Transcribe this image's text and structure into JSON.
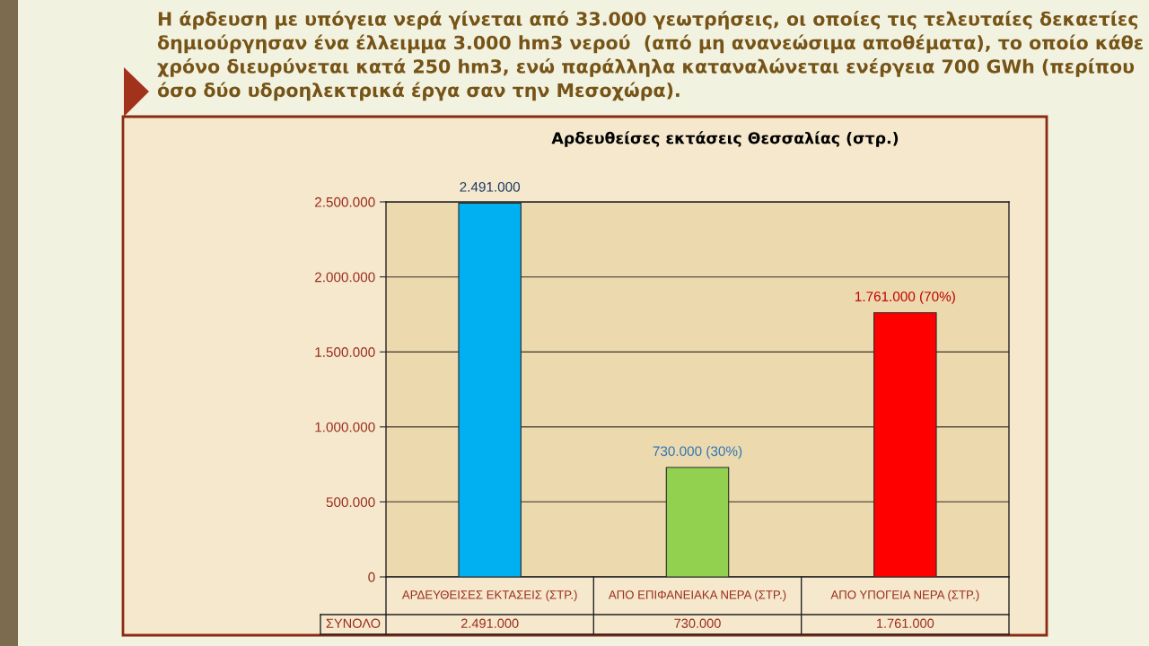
{
  "chart_data": {
    "type": "bar",
    "title": "Αρδευθείσες εκτάσεις Θεσσαλίας (στρ.)",
    "annotations": [
      "Η άρδευση με υπόγεια νερά γίνεται από 33.000 γεωτρήσεις, οι οποίες τις τελευταίες δεκαετίες δημιούργησαν ένα έλλειμμα 3.000 hm3 νερού  (από μη ανανεώσιμα αποθέματα), το οποίο κάθε χρόνο διευρύνεται κατά 250 hm3, ενώ παράλληλα καταναλώνεται ενέργεια 700 GWh (περίπου όσο δύο υδροηλεκτρικά έργα σαν την Μεσοχώρα).",
      {
        "text": "2.491.000",
        "x": "ΑΡΔΕΥΘΕΙΣΕΣ ΕΚΤΑΣΕΙΣ (ΣΤΡ.)",
        "y": 2491000
      },
      {
        "text": "730.000 (30%)",
        "x": "ΑΠΟ ΕΠΙΦΑΝΕΙΑΚΑ ΝΕΡΑ (ΣΤΡ.)",
        "y": 730000
      },
      {
        "text": "1.761.000 (70%)",
        "x": "ΑΠΟ ΥΠΟΓΕΙΑ ΝΕΡΑ (ΣΤΡ.)",
        "y": 1761000
      }
    ],
    "categories": [
      "ΑΡΔΕΥΘΕΙΣΕΣ ΕΚΤΑΣΕΙΣ (ΣΤΡ.)",
      "ΑΠΟ ΕΠΙΦΑΝΕΙΑΚΑ ΝΕΡΑ (ΣΤΡ.)",
      "ΑΠΟ ΥΠΟΓΕΙΑ ΝΕΡΑ (ΣΤΡ.)"
    ],
    "series": [
      {
        "name": "ΣΥΝΟΛΟ",
        "colors": [
          "#00b0f0",
          "#92d050",
          "#ff0000"
        ],
        "values": [
          2491000,
          730000,
          1761000
        ],
        "value_labels": [
          "2.491.000",
          "730.000",
          "1.761.000"
        ]
      }
    ],
    "ylim": [
      0,
      2500000
    ],
    "yticks": [
      {
        "value": 0,
        "label": "0"
      },
      {
        "value": 500000,
        "label": "500.000"
      },
      {
        "value": 1000000,
        "label": "1.000.000"
      },
      {
        "value": 1500000,
        "label": "1.500.000"
      },
      {
        "value": 2000000,
        "label": "2.000.000"
      },
      {
        "value": 2500000,
        "label": "2.500.000"
      }
    ],
    "grid": "y",
    "data_labels": true
  }
}
